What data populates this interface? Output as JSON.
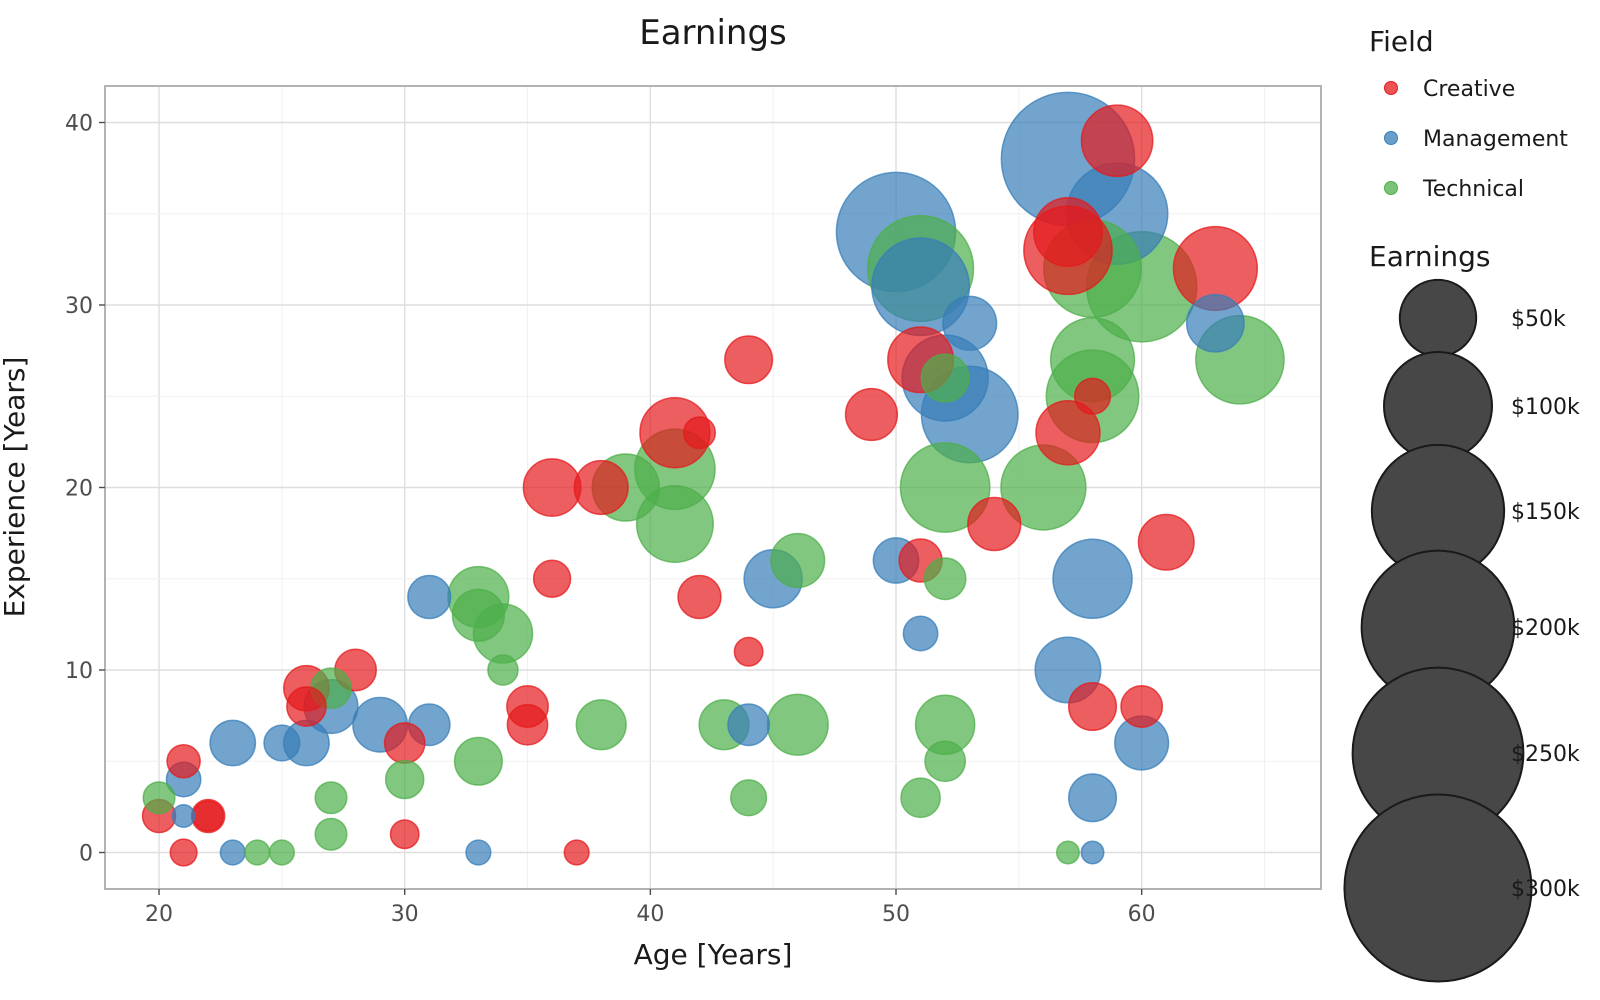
{
  "chart_data": {
    "type": "scatter",
    "title": "Earnings",
    "xlabel": "Age [Years]",
    "ylabel": "Experience [Years]",
    "xlim": [
      17.8,
      67.3
    ],
    "ylim": [
      -2,
      42
    ],
    "x_ticks": [
      20,
      30,
      40,
      50,
      60
    ],
    "y_ticks": [
      0,
      10,
      20,
      30,
      40
    ],
    "x_tick_labels": [
      "20",
      "30",
      "40",
      "50",
      "60"
    ],
    "y_tick_labels": [
      "0",
      "10",
      "20",
      "30",
      "40"
    ],
    "grid": true,
    "legend_position": "right",
    "color_legend": {
      "title": "Field",
      "entries": [
        {
          "label": "Creative",
          "color": "#e41a1c"
        },
        {
          "label": "Management",
          "color": "#377eb8"
        },
        {
          "label": "Technical",
          "color": "#4daf4a"
        }
      ]
    },
    "size_legend": {
      "title": "Earnings",
      "entries": [
        {
          "label": "$50k",
          "value": 50
        },
        {
          "label": "$100k",
          "value": 100
        },
        {
          "label": "$150k",
          "value": 150
        },
        {
          "label": "$200k",
          "value": 200
        },
        {
          "label": "$250k",
          "value": 250
        },
        {
          "label": "$300k",
          "value": 300
        }
      ]
    },
    "series": [
      {
        "name": "Creative",
        "color": "#e41a1c",
        "points": [
          {
            "x": 20,
            "y": 2,
            "earnings": 18
          },
          {
            "x": 21,
            "y": 0,
            "earnings": 10
          },
          {
            "x": 21,
            "y": 5,
            "earnings": 18
          },
          {
            "x": 22,
            "y": 2,
            "earnings": 18
          },
          {
            "x": 22,
            "y": 2,
            "earnings": 14
          },
          {
            "x": 26,
            "y": 9,
            "earnings": 40
          },
          {
            "x": 26,
            "y": 8,
            "earnings": 28
          },
          {
            "x": 28,
            "y": 10,
            "earnings": 32
          },
          {
            "x": 30,
            "y": 6,
            "earnings": 30
          },
          {
            "x": 30,
            "y": 1,
            "earnings": 12
          },
          {
            "x": 35,
            "y": 8,
            "earnings": 32
          },
          {
            "x": 35,
            "y": 7,
            "earnings": 30
          },
          {
            "x": 36,
            "y": 15,
            "earnings": 24
          },
          {
            "x": 36,
            "y": 20,
            "earnings": 70
          },
          {
            "x": 37,
            "y": 0,
            "earnings": 8
          },
          {
            "x": 38,
            "y": 20,
            "earnings": 60
          },
          {
            "x": 41,
            "y": 23,
            "earnings": 110
          },
          {
            "x": 42,
            "y": 23,
            "earnings": 16
          },
          {
            "x": 42,
            "y": 14,
            "earnings": 35
          },
          {
            "x": 44,
            "y": 27,
            "earnings": 45
          },
          {
            "x": 44,
            "y": 11,
            "earnings": 12
          },
          {
            "x": 49,
            "y": 24,
            "earnings": 55
          },
          {
            "x": 51,
            "y": 27,
            "earnings": 95
          },
          {
            "x": 51,
            "y": 16,
            "earnings": 35
          },
          {
            "x": 54,
            "y": 18,
            "earnings": 58
          },
          {
            "x": 57,
            "y": 34,
            "earnings": 105
          },
          {
            "x": 57,
            "y": 33,
            "earnings": 185
          },
          {
            "x": 57,
            "y": 23,
            "earnings": 90
          },
          {
            "x": 58,
            "y": 25,
            "earnings": 22
          },
          {
            "x": 58,
            "y": 8,
            "earnings": 45
          },
          {
            "x": 59,
            "y": 39,
            "earnings": 115
          },
          {
            "x": 60,
            "y": 8,
            "earnings": 32
          },
          {
            "x": 61,
            "y": 17,
            "earnings": 65
          },
          {
            "x": 63,
            "y": 32,
            "earnings": 165
          }
        ]
      },
      {
        "name": "Management",
        "color": "#377eb8",
        "points": [
          {
            "x": 21,
            "y": 4,
            "earnings": 20
          },
          {
            "x": 21,
            "y": 2,
            "earnings": 6
          },
          {
            "x": 23,
            "y": 6,
            "earnings": 40
          },
          {
            "x": 23,
            "y": 0,
            "earnings": 8
          },
          {
            "x": 25,
            "y": 6,
            "earnings": 22
          },
          {
            "x": 26,
            "y": 6,
            "earnings": 40
          },
          {
            "x": 27,
            "y": 8,
            "earnings": 60
          },
          {
            "x": 29,
            "y": 7,
            "earnings": 62
          },
          {
            "x": 31,
            "y": 14,
            "earnings": 35
          },
          {
            "x": 31,
            "y": 7,
            "earnings": 32
          },
          {
            "x": 33,
            "y": 0,
            "earnings": 8
          },
          {
            "x": 44,
            "y": 7,
            "earnings": 32
          },
          {
            "x": 45,
            "y": 15,
            "earnings": 72
          },
          {
            "x": 50,
            "y": 34,
            "earnings": 355
          },
          {
            "x": 50,
            "y": 16,
            "earnings": 40
          },
          {
            "x": 51,
            "y": 31,
            "earnings": 230
          },
          {
            "x": 51,
            "y": 12,
            "earnings": 20
          },
          {
            "x": 52,
            "y": 26,
            "earnings": 175
          },
          {
            "x": 53,
            "y": 29,
            "earnings": 60
          },
          {
            "x": 53,
            "y": 24,
            "earnings": 225
          },
          {
            "x": 57,
            "y": 38,
            "earnings": 450
          },
          {
            "x": 57,
            "y": 10,
            "earnings": 95
          },
          {
            "x": 58,
            "y": 15,
            "earnings": 145
          },
          {
            "x": 58,
            "y": 3,
            "earnings": 45
          },
          {
            "x": 58,
            "y": 0,
            "earnings": 6
          },
          {
            "x": 59,
            "y": 35,
            "earnings": 250
          },
          {
            "x": 60,
            "y": 6,
            "earnings": 60
          },
          {
            "x": 63,
            "y": 29,
            "earnings": 70
          }
        ]
      },
      {
        "name": "Technical",
        "color": "#4daf4a",
        "points": [
          {
            "x": 20,
            "y": 3,
            "earnings": 16
          },
          {
            "x": 24,
            "y": 0,
            "earnings": 8
          },
          {
            "x": 25,
            "y": 0,
            "earnings": 8
          },
          {
            "x": 27,
            "y": 9,
            "earnings": 30
          },
          {
            "x": 27,
            "y": 3,
            "earnings": 16
          },
          {
            "x": 27,
            "y": 1,
            "earnings": 16
          },
          {
            "x": 30,
            "y": 4,
            "earnings": 26
          },
          {
            "x": 33,
            "y": 14,
            "earnings": 80
          },
          {
            "x": 33,
            "y": 13,
            "earnings": 55
          },
          {
            "x": 33,
            "y": 5,
            "earnings": 45
          },
          {
            "x": 34,
            "y": 12,
            "earnings": 75
          },
          {
            "x": 34,
            "y": 10,
            "earnings": 14
          },
          {
            "x": 38,
            "y": 7,
            "earnings": 50
          },
          {
            "x": 39,
            "y": 20,
            "earnings": 100
          },
          {
            "x": 41,
            "y": 21,
            "earnings": 150
          },
          {
            "x": 41,
            "y": 18,
            "earnings": 135
          },
          {
            "x": 43,
            "y": 7,
            "earnings": 50
          },
          {
            "x": 44,
            "y": 3,
            "earnings": 22
          },
          {
            "x": 46,
            "y": 16,
            "earnings": 60
          },
          {
            "x": 46,
            "y": 7,
            "earnings": 80
          },
          {
            "x": 51,
            "y": 32,
            "earnings": 275
          },
          {
            "x": 51,
            "y": 3,
            "earnings": 28
          },
          {
            "x": 52,
            "y": 26,
            "earnings": 45
          },
          {
            "x": 52,
            "y": 20,
            "earnings": 190
          },
          {
            "x": 52,
            "y": 15,
            "earnings": 32
          },
          {
            "x": 52,
            "y": 7,
            "earnings": 75
          },
          {
            "x": 52,
            "y": 5,
            "earnings": 30
          },
          {
            "x": 56,
            "y": 20,
            "earnings": 170
          },
          {
            "x": 57,
            "y": 0,
            "earnings": 6
          },
          {
            "x": 58,
            "y": 32,
            "earnings": 230
          },
          {
            "x": 58,
            "y": 27,
            "earnings": 165
          },
          {
            "x": 58,
            "y": 25,
            "earnings": 205
          },
          {
            "x": 60,
            "y": 31,
            "earnings": 300
          },
          {
            "x": 64,
            "y": 27,
            "earnings": 185
          }
        ]
      }
    ]
  }
}
